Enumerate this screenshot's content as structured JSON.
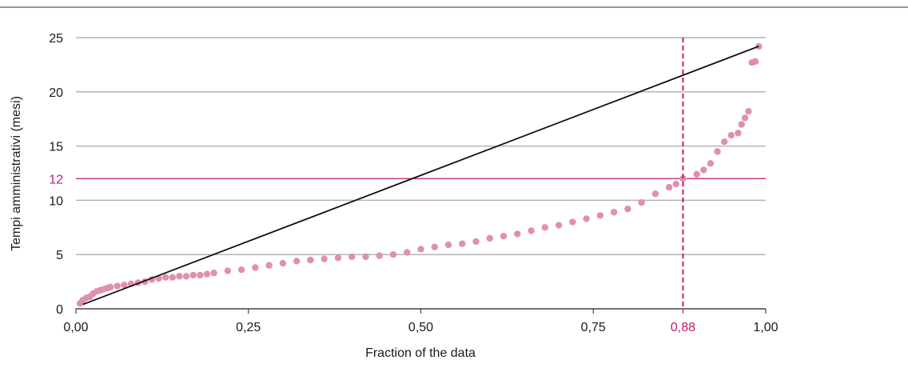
{
  "colors": {
    "points": "#e08fb0",
    "line": "#111111",
    "highlight": "#c2186b",
    "grid": "#b4b4b4",
    "rule": "#333333"
  },
  "chart_data": {
    "type": "scatter",
    "title": "",
    "xlabel": "Fraction of the data",
    "ylabel": "Tempi amministrativi (mesi)",
    "xlim": [
      0,
      1
    ],
    "ylim": [
      0,
      25
    ],
    "grid": "horizontal",
    "x_ticks": [
      {
        "value": 0.0,
        "label": "0,00"
      },
      {
        "value": 0.25,
        "label": "0,25"
      },
      {
        "value": 0.5,
        "label": "0,50"
      },
      {
        "value": 0.75,
        "label": "0,75"
      },
      {
        "value": 1.0,
        "label": "1,00"
      }
    ],
    "y_ticks": [
      {
        "value": 0,
        "label": "0"
      },
      {
        "value": 5,
        "label": "5"
      },
      {
        "value": 10,
        "label": "10"
      },
      {
        "value": 15,
        "label": "15"
      },
      {
        "value": 20,
        "label": "20"
      },
      {
        "value": 25,
        "label": "25"
      }
    ],
    "highlights": {
      "y": {
        "value": 12,
        "label": "12"
      },
      "x": {
        "value": 0.88,
        "label": "0,88"
      }
    },
    "reference_line": {
      "x": [
        0.01,
        0.99
      ],
      "y": [
        0.4,
        24.2
      ]
    },
    "series": [
      {
        "x": [
          0.006,
          0.01,
          0.015,
          0.02,
          0.025,
          0.03,
          0.035,
          0.04,
          0.045,
          0.05,
          0.06,
          0.07,
          0.08,
          0.09,
          0.1,
          0.11,
          0.12,
          0.13,
          0.14,
          0.15,
          0.16,
          0.17,
          0.18,
          0.19,
          0.2,
          0.22,
          0.24,
          0.26,
          0.28,
          0.3,
          0.32,
          0.34,
          0.36,
          0.38,
          0.4,
          0.42,
          0.44,
          0.46,
          0.48,
          0.5,
          0.52,
          0.54,
          0.56,
          0.58,
          0.6,
          0.62,
          0.64,
          0.66,
          0.68,
          0.7,
          0.72,
          0.74,
          0.76,
          0.78,
          0.8,
          0.82,
          0.84,
          0.86,
          0.87,
          0.88,
          0.9,
          0.91,
          0.92,
          0.93,
          0.94,
          0.95,
          0.96,
          0.965,
          0.97,
          0.975,
          0.98,
          0.985,
          0.99
        ],
        "y": [
          0.5,
          0.8,
          1.0,
          1.1,
          1.4,
          1.6,
          1.7,
          1.8,
          1.9,
          2.0,
          2.1,
          2.2,
          2.3,
          2.4,
          2.5,
          2.7,
          2.8,
          2.9,
          2.9,
          3.0,
          3.0,
          3.1,
          3.1,
          3.2,
          3.3,
          3.5,
          3.6,
          3.8,
          4.0,
          4.2,
          4.4,
          4.5,
          4.6,
          4.7,
          4.8,
          4.8,
          4.9,
          5.0,
          5.2,
          5.5,
          5.7,
          5.9,
          6.0,
          6.2,
          6.5,
          6.7,
          6.9,
          7.2,
          7.5,
          7.7,
          8.0,
          8.3,
          8.6,
          8.9,
          9.2,
          9.8,
          10.6,
          11.2,
          11.5,
          12.0,
          12.4,
          12.8,
          13.4,
          14.5,
          15.4,
          16.0,
          16.2,
          17.0,
          17.6,
          18.2,
          22.7,
          22.8,
          24.2
        ]
      }
    ]
  }
}
